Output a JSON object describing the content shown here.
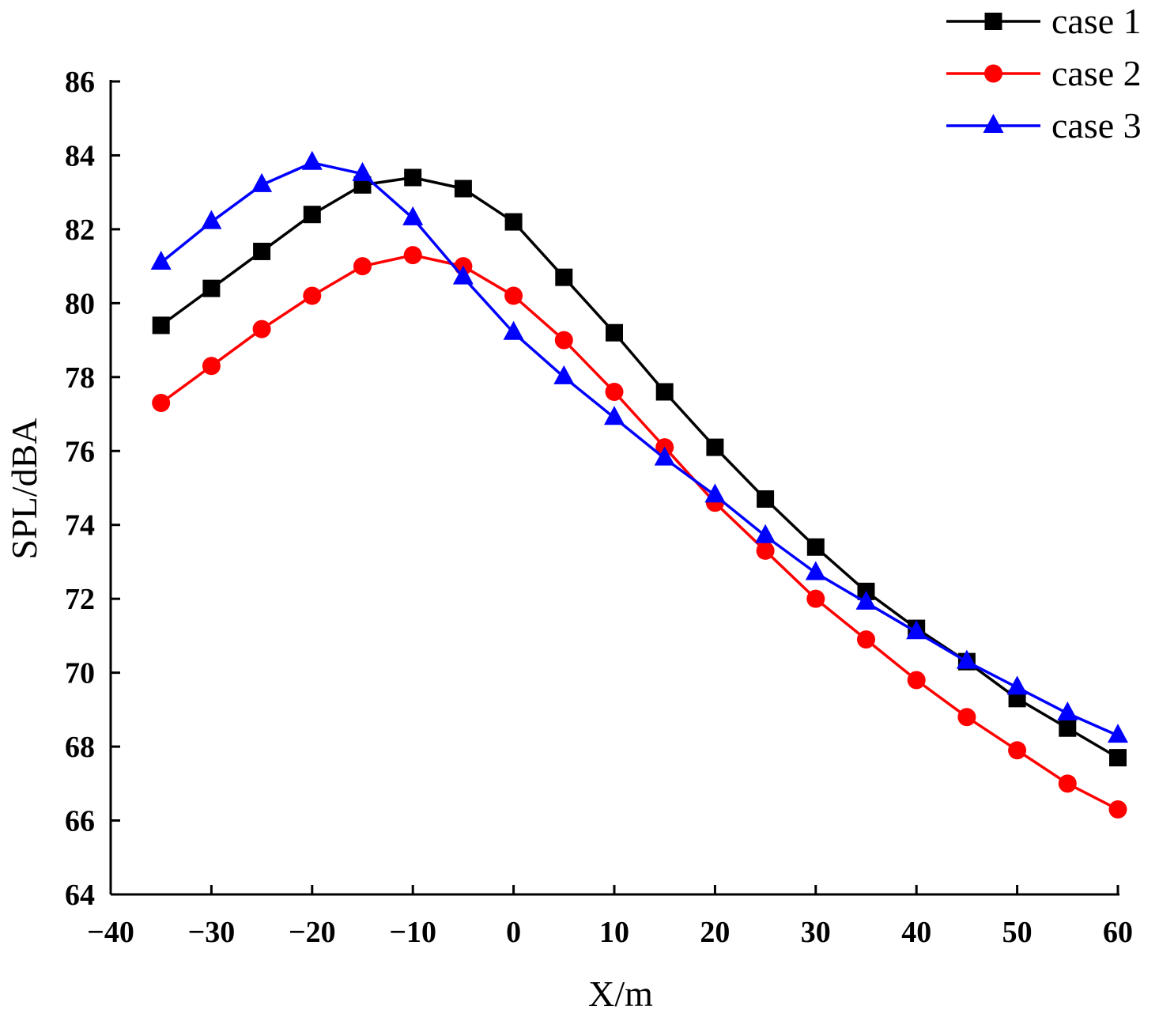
{
  "chart_data": {
    "type": "line",
    "title": "",
    "xlabel": "X/m",
    "ylabel": "SPL/dBA",
    "xlim": [
      -40,
      60
    ],
    "ylim": [
      64,
      86
    ],
    "xticks": [
      -40,
      -30,
      -20,
      -10,
      0,
      10,
      20,
      30,
      40,
      50,
      60
    ],
    "xtick_labels": [
      "−40",
      "−30",
      "−20",
      "−10",
      "0",
      "10",
      "20",
      "30",
      "40",
      "50",
      "60"
    ],
    "yticks": [
      64,
      66,
      68,
      70,
      72,
      74,
      76,
      78,
      80,
      82,
      84,
      86
    ],
    "ytick_labels": [
      "64",
      "66",
      "68",
      "70",
      "72",
      "74",
      "76",
      "78",
      "80",
      "82",
      "84",
      "86"
    ],
    "grid": false,
    "legend_position": "top-right",
    "x": [
      -35,
      -30,
      -25,
      -20,
      -15,
      -10,
      -5,
      0,
      5,
      10,
      15,
      20,
      25,
      30,
      35,
      40,
      45,
      50,
      55,
      60
    ],
    "series": [
      {
        "name": "case 1",
        "color": "#000000",
        "marker": "square",
        "values": [
          79.4,
          80.4,
          81.4,
          82.4,
          83.2,
          83.4,
          83.1,
          82.2,
          80.7,
          79.2,
          77.6,
          76.1,
          74.7,
          73.4,
          72.2,
          71.2,
          70.3,
          69.3,
          68.5,
          67.7
        ]
      },
      {
        "name": "case 2",
        "color": "#ff0000",
        "marker": "circle",
        "values": [
          77.3,
          78.3,
          79.3,
          80.2,
          81.0,
          81.3,
          81.0,
          80.2,
          79.0,
          77.6,
          76.1,
          74.6,
          73.3,
          72.0,
          70.9,
          69.8,
          68.8,
          67.9,
          67.0,
          66.3
        ]
      },
      {
        "name": "case 3",
        "color": "#0000ff",
        "marker": "triangle",
        "values": [
          81.1,
          82.2,
          83.2,
          83.8,
          83.5,
          82.3,
          80.7,
          79.2,
          78.0,
          76.9,
          75.8,
          74.8,
          73.7,
          72.7,
          71.9,
          71.1,
          70.3,
          69.6,
          68.9,
          68.3
        ]
      }
    ]
  }
}
